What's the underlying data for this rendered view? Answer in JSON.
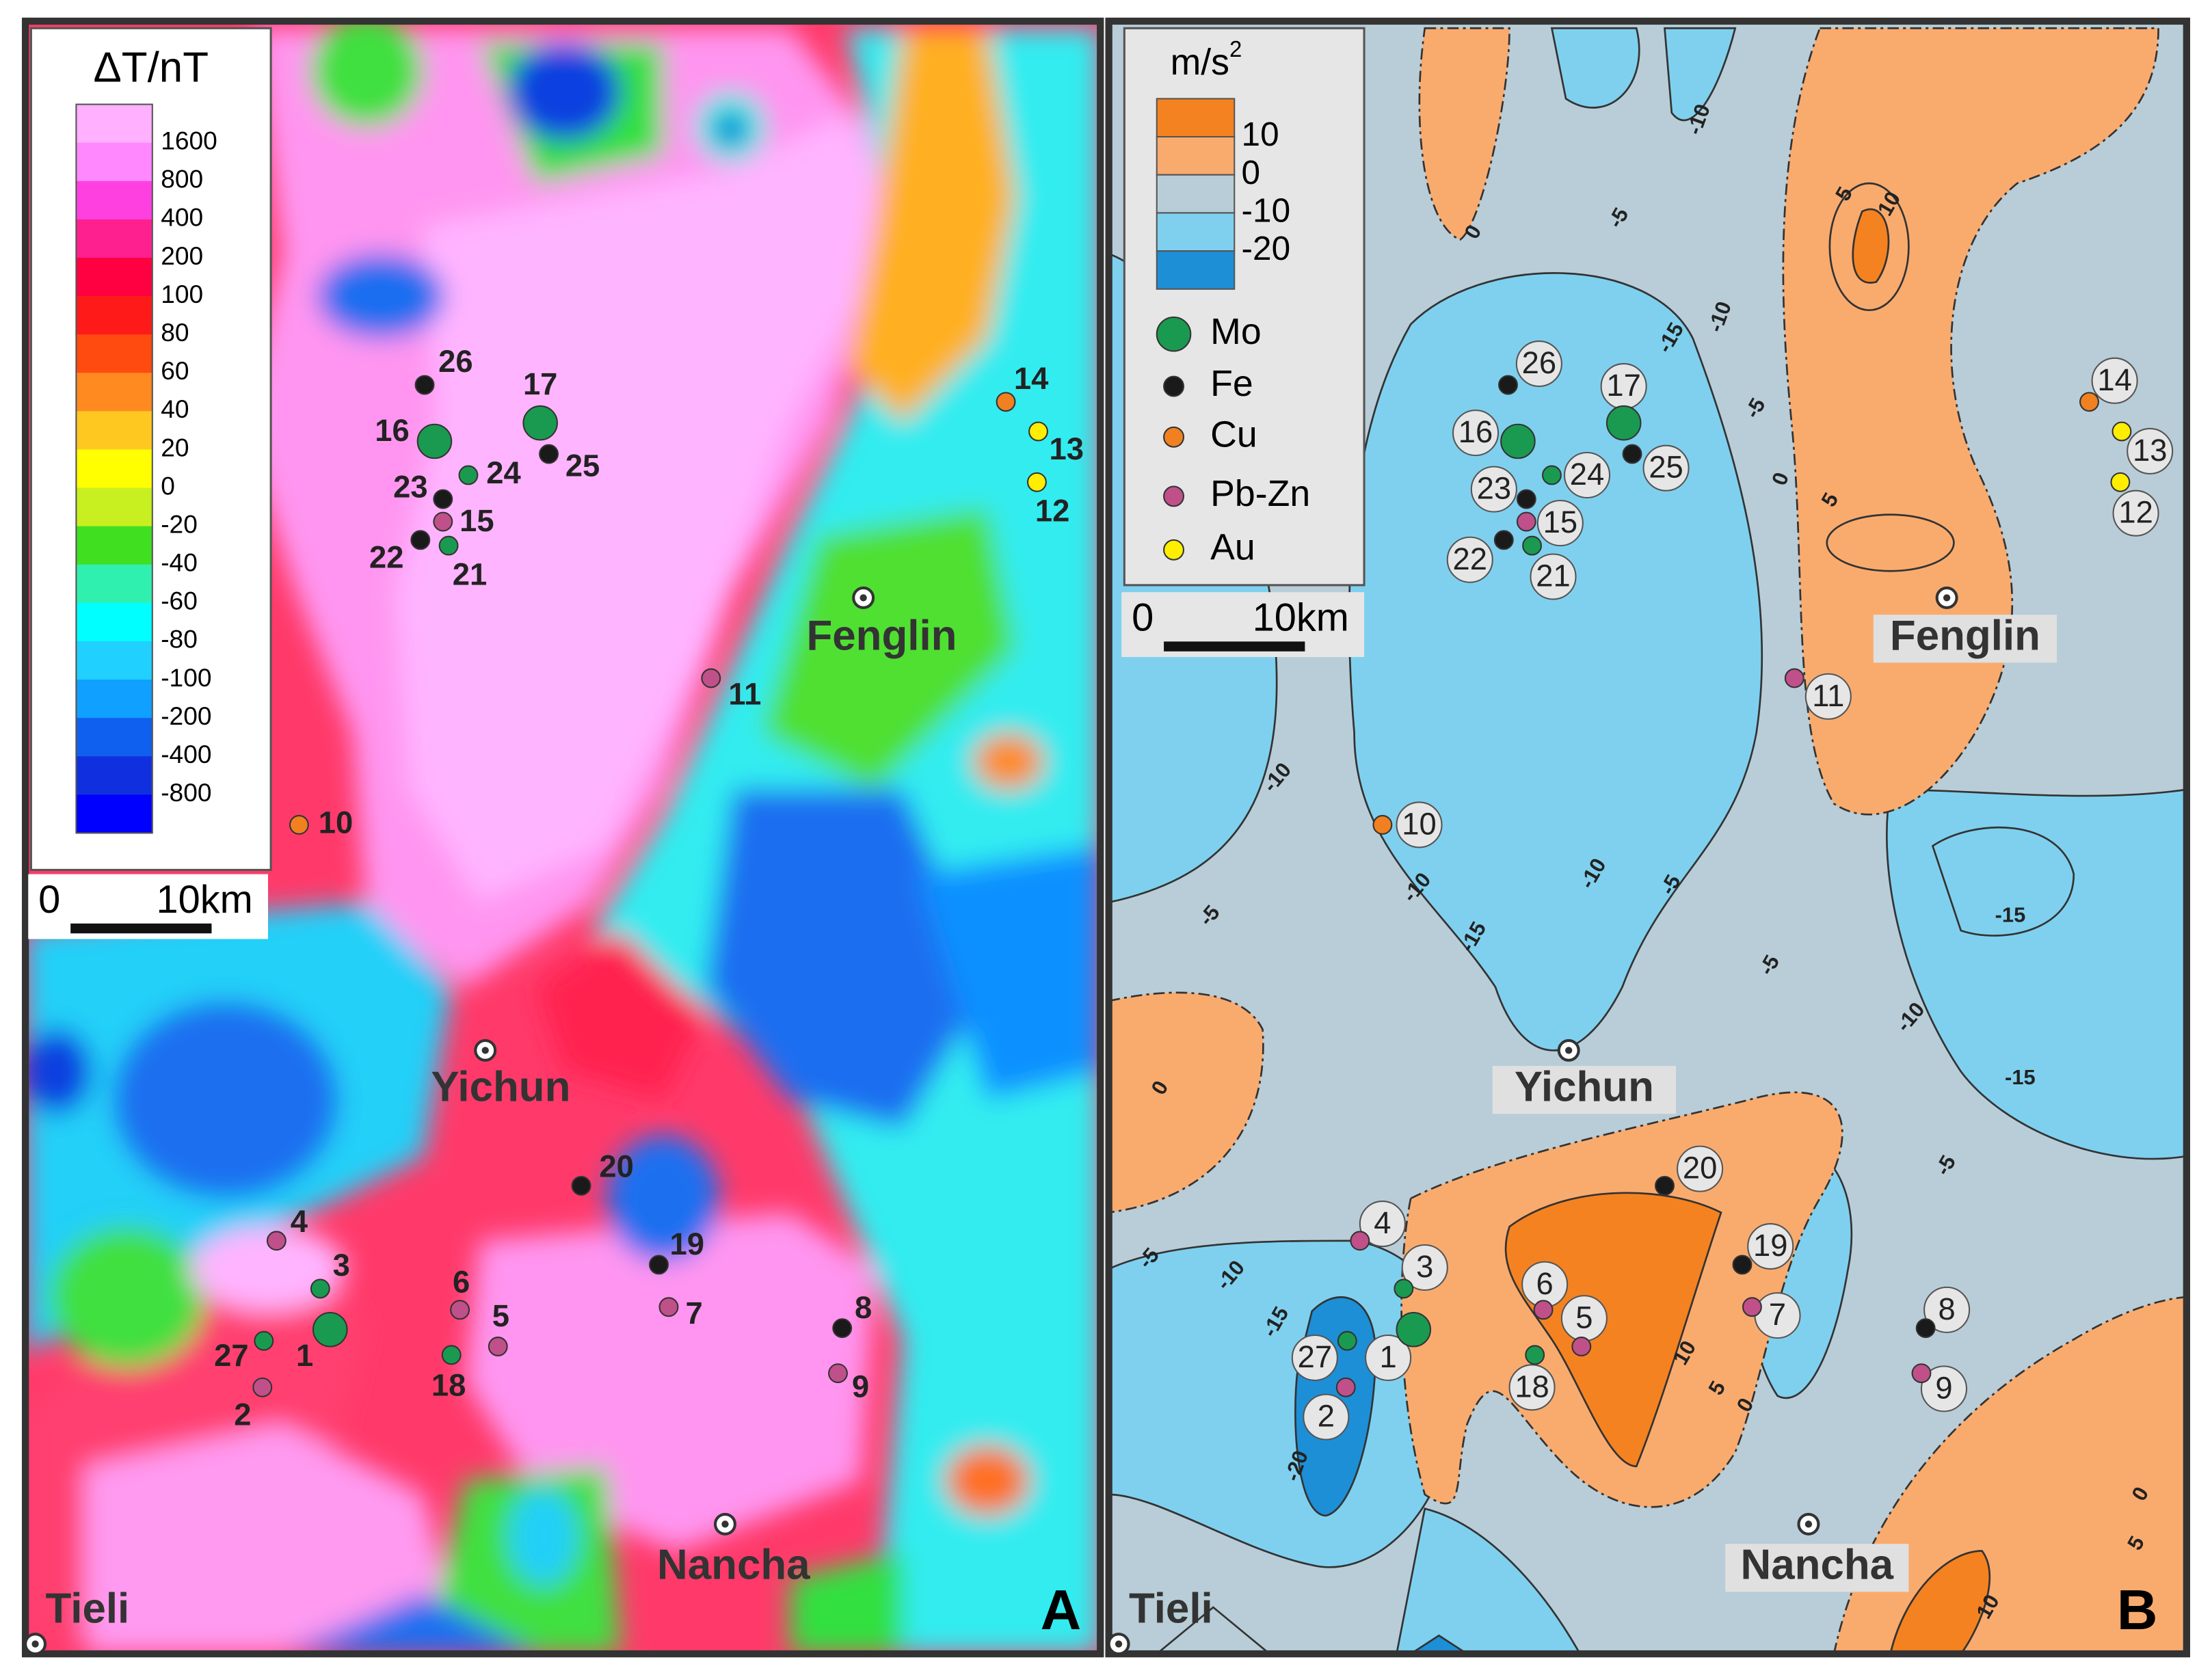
{
  "panel_a": {
    "letter": "A",
    "legend": {
      "title": "ΔT/nT",
      "labels": [
        "1600",
        "800",
        "400",
        "200",
        "100",
        "80",
        "60",
        "40",
        "20",
        "0",
        "-20",
        "-40",
        "-60",
        "-80",
        "-100",
        "-200",
        "-400",
        "-800"
      ]
    },
    "scale_bar": {
      "start": "0",
      "end": "10km"
    }
  },
  "panel_b": {
    "letter": "B",
    "legend": {
      "unit": "m/s",
      "unit_exponent": "2",
      "labels": [
        "10",
        "0",
        "-10",
        "-20"
      ],
      "deposit_types": [
        "Mo",
        "Fe",
        "Cu",
        "Pb-Zn",
        "Au"
      ]
    },
    "scale_bar": {
      "start": "0",
      "end": "10km"
    },
    "contour_labels": [
      "0",
      "-10",
      "-5",
      "-15",
      "-10",
      "-5",
      "0",
      "5",
      "10",
      "5",
      "-10",
      "-10",
      "-5",
      "-15",
      "-10",
      "-5",
      "-5",
      "-10",
      "-15",
      "-15",
      "0",
      "-5",
      "-10",
      "-15",
      "-20",
      "10",
      "5",
      "0",
      "-5",
      "5",
      "0",
      "10"
    ]
  },
  "places": [
    "Fenglin",
    "Yichun",
    "Nancha",
    "Tieli"
  ],
  "deposits": [
    {
      "id": "26",
      "type": "Fe"
    },
    {
      "id": "17",
      "type": "Mo"
    },
    {
      "id": "16",
      "type": "Mo"
    },
    {
      "id": "24",
      "type": "Mo"
    },
    {
      "id": "25",
      "type": "Fe"
    },
    {
      "id": "23",
      "type": "Fe"
    },
    {
      "id": "15",
      "type": "Pb-Zn"
    },
    {
      "id": "22",
      "type": "Fe"
    },
    {
      "id": "21",
      "type": "Mo"
    },
    {
      "id": "14",
      "type": "Cu"
    },
    {
      "id": "13",
      "type": "Au"
    },
    {
      "id": "12",
      "type": "Au"
    },
    {
      "id": "11",
      "type": "Pb-Zn"
    },
    {
      "id": "10",
      "type": "Cu"
    },
    {
      "id": "20",
      "type": "Fe"
    },
    {
      "id": "19",
      "type": "Fe"
    },
    {
      "id": "7",
      "type": "Pb-Zn"
    },
    {
      "id": "4",
      "type": "Pb-Zn"
    },
    {
      "id": "3",
      "type": "Mo"
    },
    {
      "id": "6",
      "type": "Pb-Zn"
    },
    {
      "id": "5",
      "type": "Pb-Zn"
    },
    {
      "id": "27",
      "type": "Mo"
    },
    {
      "id": "1",
      "type": "Mo"
    },
    {
      "id": "18",
      "type": "Mo"
    },
    {
      "id": "2",
      "type": "Pb-Zn"
    },
    {
      "id": "8",
      "type": "Fe"
    },
    {
      "id": "9",
      "type": "Pb-Zn"
    }
  ]
}
